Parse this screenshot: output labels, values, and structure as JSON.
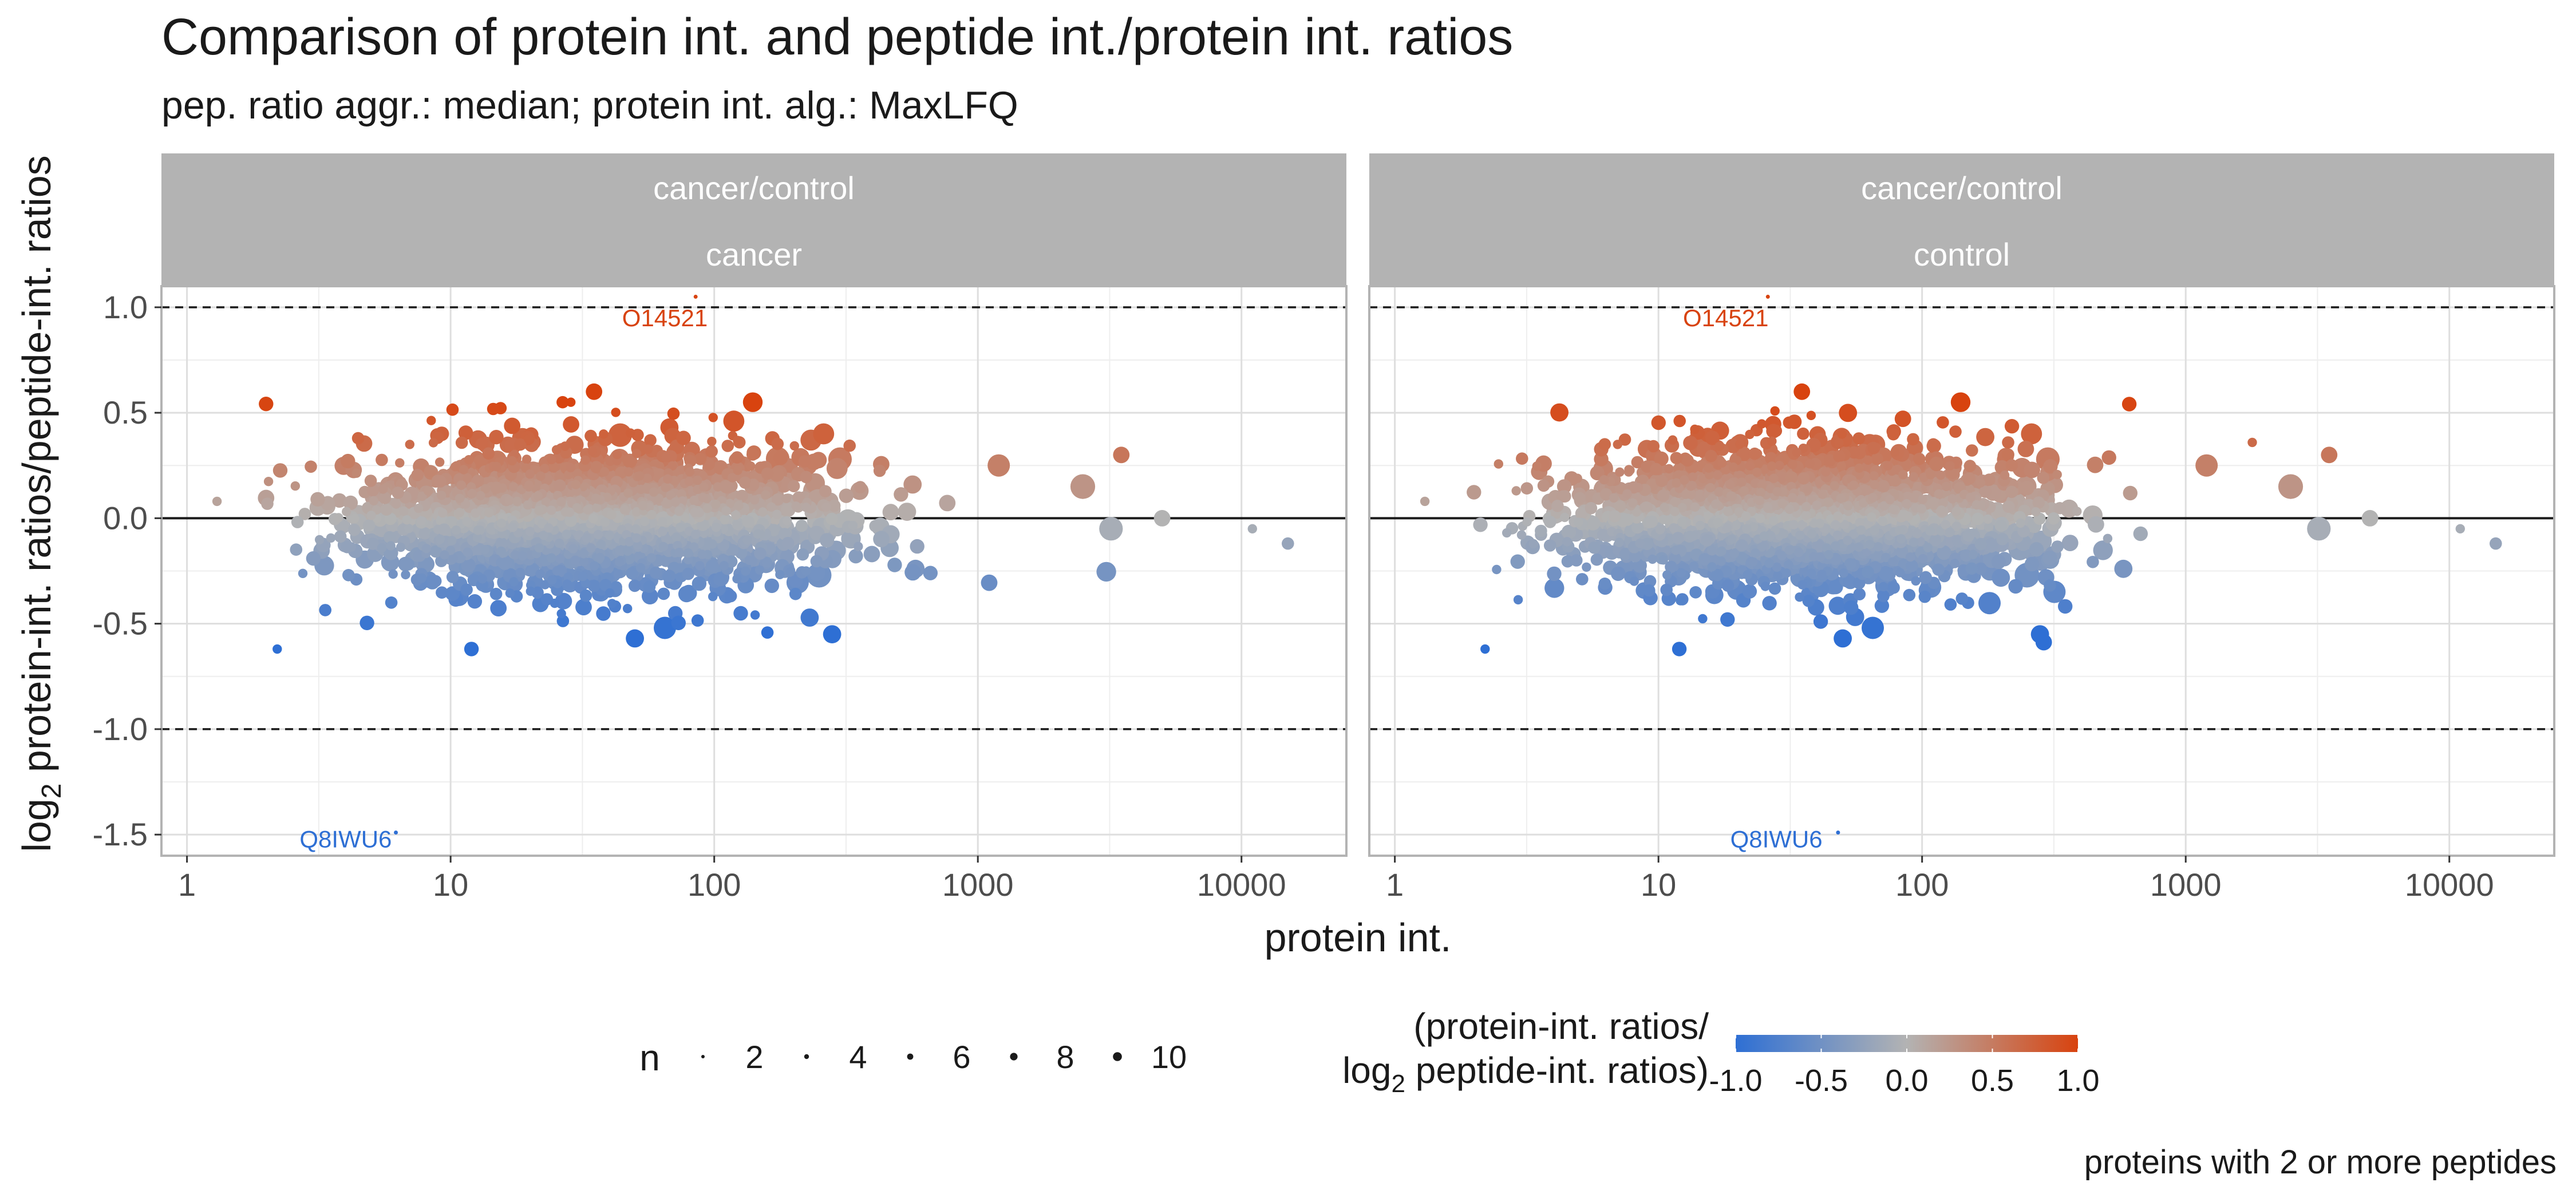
{
  "title": "Comparison of protein int. and peptide int./protein int. ratios",
  "subtitle": "pep. ratio aggr.: median; protein int. alg.: MaxLFQ",
  "caption": "proteins with 2 or more peptides",
  "colors": {
    "low": "#2E6FD4",
    "mid": "#B3B3B3",
    "high": "#D8430F",
    "strip": "#B3B3B3",
    "label_low": "#2E6FD4",
    "label_high": "#D8430F"
  },
  "chart_data": {
    "type": "scatter",
    "x_scale": "log10",
    "xlabel": "protein int.",
    "ylabel_prefix": "log",
    "ylabel_sub": "2",
    "ylabel_rest": " protein-int. ratios/peptide-int. ratios",
    "xlim": [
      0.8,
      25000
    ],
    "ylim": [
      -1.6,
      1.1
    ],
    "x_ticks": [
      1,
      10,
      100,
      1000,
      10000
    ],
    "x_tick_labels": [
      "1",
      "10",
      "100",
      "1000",
      "10000"
    ],
    "y_ticks": [
      1.0,
      0.5,
      0.0,
      -0.5,
      -1.0,
      -1.5
    ],
    "y_tick_labels": [
      "1.0",
      "0.5",
      "0.0",
      "-0.5",
      "-1.0",
      "-1.5"
    ],
    "hlines_dashed": [
      1.0,
      -1.0
    ],
    "hline_solid": 0.0,
    "grid": true,
    "facets": [
      {
        "strip_top": "cancer/control",
        "strip_bottom": "cancer",
        "labels": [
          {
            "text": "O14521",
            "x": 65,
            "y": 0.94,
            "point_x": 85,
            "point_y": 1.05,
            "dir": "high"
          },
          {
            "text": "Q8IWU6",
            "x": 4,
            "y": -1.53,
            "point_x": 6.2,
            "point_y": -1.49,
            "dir": "low"
          }
        ],
        "seed": 11
      },
      {
        "strip_top": "cancer/control",
        "strip_bottom": "control",
        "labels": [
          {
            "text": "O14521",
            "x": 18,
            "y": 0.94,
            "point_x": 26,
            "point_y": 1.05,
            "dir": "high"
          },
          {
            "text": "Q8IWU6",
            "x": 28,
            "y": -1.53,
            "point_x": 48,
            "point_y": -1.49,
            "dir": "low"
          }
        ],
        "seed": 29
      }
    ],
    "points_per_facet_generated": 2600,
    "highlight_points": [
      {
        "x": 35,
        "y": 0.6,
        "n": 4
      },
      {
        "x": 140,
        "y": 0.55,
        "n": 6
      },
      {
        "x": 260,
        "y": 0.4,
        "n": 7
      },
      {
        "x": 300,
        "y": 0.28,
        "n": 9
      },
      {
        "x": 1200,
        "y": 0.25,
        "n": 8
      },
      {
        "x": 2500,
        "y": 0.15,
        "n": 10
      },
      {
        "x": 3500,
        "y": 0.3,
        "n": 4
      },
      {
        "x": 5000,
        "y": 0.0,
        "n": 4
      },
      {
        "x": 3200,
        "y": -0.05,
        "n": 9
      },
      {
        "x": 250,
        "y": -0.27,
        "n": 10
      },
      {
        "x": 65,
        "y": -0.52,
        "n": 8
      },
      {
        "x": 50,
        "y": -0.57,
        "n": 5
      },
      {
        "x": 280,
        "y": -0.55,
        "n": 5
      },
      {
        "x": 580,
        "y": -0.24,
        "n": 5
      },
      {
        "x": 12,
        "y": -0.62,
        "n": 3
      },
      {
        "x": 15000,
        "y": -0.12,
        "n": 2
      },
      {
        "x": 11000,
        "y": -0.05,
        "n": 1
      },
      {
        "x": 2.2,
        "y": -0.62,
        "n": 1
      },
      {
        "x": 1.3,
        "y": 0.08,
        "n": 1
      },
      {
        "x": 7,
        "y": 0.35,
        "n": 1
      }
    ]
  },
  "legend": {
    "size_title": "n",
    "size_values": [
      2,
      4,
      6,
      8,
      10
    ],
    "color_title_line1": "(protein-int. ratios/",
    "color_title_prefix": "log",
    "color_title_sub": "2",
    "color_title_rest": " peptide-int. ratios)",
    "color_ticks": [
      -1.0,
      -0.5,
      0.0,
      0.5,
      1.0
    ],
    "color_tick_labels": [
      "-1.0",
      "-0.5",
      "0.0",
      "0.5",
      "1.0"
    ]
  }
}
